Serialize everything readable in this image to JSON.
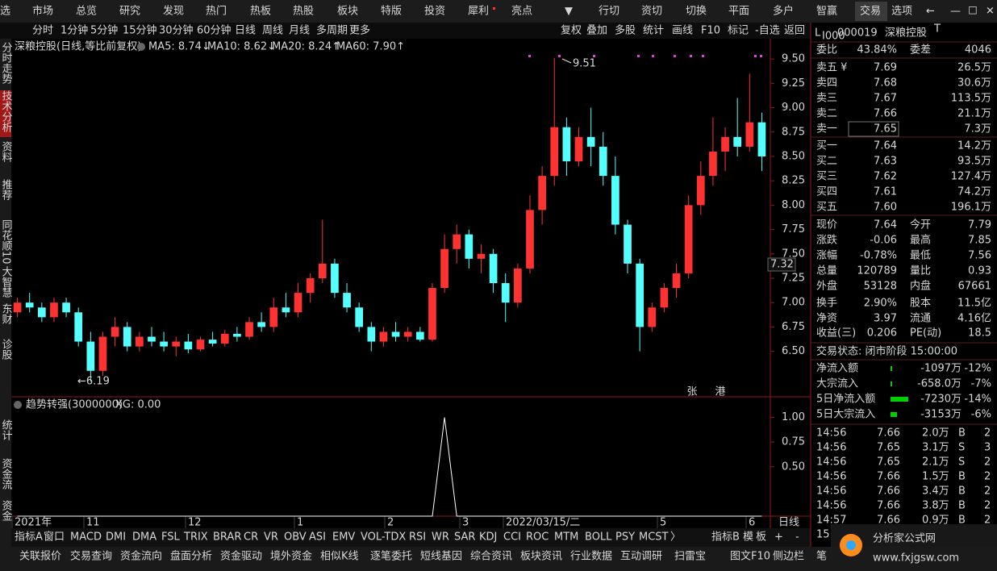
{
  "top_menu": [
    "选",
    "市场",
    "总览",
    "研究",
    "发现",
    "热门",
    "热板",
    "热股",
    "板块",
    "特版",
    "投资",
    "犀利",
    "亮点",
    "▼",
    "行切",
    "资切",
    "切换",
    "平面",
    "多户",
    "智赢",
    "交易",
    "选项",
    "←",
    "—",
    "☐",
    "✕"
  ],
  "periods": [
    "分时",
    "1分钟",
    "5分钟",
    "15分钟",
    "30分钟",
    "60分钟",
    "日线",
    "周线",
    "月线",
    "多周期",
    "更多"
  ],
  "tools": [
    "复权",
    "叠加",
    "多股",
    "统计",
    "画线",
    "F10",
    "标记",
    "-自选",
    "返回"
  ],
  "sidebar": [
    "分时走势",
    "技术分析",
    "资料",
    "推荐",
    "同花顺10",
    "大智慧",
    "东财",
    "诊股",
    "统计",
    "资金流",
    "资金"
  ],
  "chart_data": {
    "type": "candlestick",
    "title": "深粮控股(日线,等比前复权)",
    "ma_labels": [
      "MA5: 8.74↓",
      "MA10: 8.62↓",
      "MA20: 8.24↑",
      "MA60: 7.90↑"
    ],
    "ma_colors": [
      "#ffffff",
      "#ffff00",
      "#ff40ff",
      "#00e000"
    ],
    "up_color": "#ff3232",
    "down_color": "#54ffff",
    "ylim": [
      6.05,
      9.65
    ],
    "yticks": [
      {
        "value": 9.5,
        "label": "9.50"
      },
      {
        "value": 9.25,
        "label": "9.25"
      },
      {
        "value": 9.0,
        "label": "9.00"
      },
      {
        "value": 8.75,
        "label": "8.75"
      },
      {
        "value": 8.5,
        "label": "8.50"
      },
      {
        "value": 8.25,
        "label": "8.25"
      },
      {
        "value": 8.0,
        "label": "8.00"
      },
      {
        "value": 7.75,
        "label": "7.75"
      },
      {
        "value": 7.5,
        "label": "7.50"
      },
      {
        "value": 7.25,
        "label": "7.25"
      },
      {
        "value": 7.0,
        "label": "7.00"
      },
      {
        "value": 6.75,
        "label": "6.75"
      },
      {
        "value": 6.5,
        "label": "6.50"
      }
    ],
    "ohlc": [
      [
        6.9,
        7.05,
        6.85,
        7.0
      ],
      [
        7.0,
        7.1,
        6.9,
        6.95
      ],
      [
        6.95,
        7.0,
        6.8,
        6.85
      ],
      [
        6.85,
        7.05,
        6.8,
        7.0
      ],
      [
        7.0,
        7.05,
        6.85,
        6.9
      ],
      [
        6.9,
        6.95,
        6.55,
        6.6
      ],
      [
        6.6,
        6.7,
        6.19,
        6.3
      ],
      [
        6.3,
        6.7,
        6.25,
        6.65
      ],
      [
        6.65,
        6.85,
        6.55,
        6.75
      ],
      [
        6.75,
        6.8,
        6.5,
        6.55
      ],
      [
        6.55,
        6.7,
        6.5,
        6.65
      ],
      [
        6.65,
        6.75,
        6.55,
        6.6
      ],
      [
        6.6,
        6.7,
        6.5,
        6.55
      ],
      [
        6.55,
        6.65,
        6.45,
        6.6
      ],
      [
        6.6,
        6.68,
        6.48,
        6.52
      ],
      [
        6.52,
        6.65,
        6.5,
        6.62
      ],
      [
        6.62,
        6.7,
        6.55,
        6.58
      ],
      [
        6.58,
        6.72,
        6.55,
        6.68
      ],
      [
        6.68,
        6.75,
        6.6,
        6.65
      ],
      [
        6.65,
        6.85,
        6.62,
        6.8
      ],
      [
        6.8,
        6.9,
        6.7,
        6.75
      ],
      [
        6.75,
        7.05,
        6.7,
        6.95
      ],
      [
        6.95,
        7.1,
        6.85,
        6.9
      ],
      [
        6.9,
        7.2,
        6.85,
        7.1
      ],
      [
        7.1,
        7.3,
        7.0,
        7.25
      ],
      [
        7.25,
        7.85,
        7.2,
        7.4
      ],
      [
        7.4,
        7.45,
        7.05,
        7.1
      ],
      [
        7.1,
        7.2,
        6.9,
        6.95
      ],
      [
        6.95,
        7.0,
        6.7,
        6.75
      ],
      [
        6.75,
        6.8,
        6.5,
        6.6
      ],
      [
        6.6,
        6.75,
        6.55,
        6.7
      ],
      [
        6.7,
        6.8,
        6.6,
        6.65
      ],
      [
        6.65,
        6.75,
        6.6,
        6.7
      ],
      [
        6.7,
        6.75,
        6.6,
        6.62
      ],
      [
        6.62,
        7.2,
        6.6,
        7.15
      ],
      [
        7.15,
        7.7,
        7.1,
        7.55
      ],
      [
        7.55,
        7.8,
        7.4,
        7.7
      ],
      [
        7.7,
        7.75,
        7.35,
        7.45
      ],
      [
        7.45,
        7.6,
        7.3,
        7.5
      ],
      [
        7.5,
        7.55,
        7.1,
        7.2
      ],
      [
        7.2,
        7.3,
        6.8,
        7.0
      ],
      [
        7.0,
        7.4,
        6.95,
        7.35
      ],
      [
        7.35,
        8.1,
        7.3,
        7.95
      ],
      [
        7.95,
        8.4,
        7.8,
        8.3
      ],
      [
        8.3,
        9.51,
        8.2,
        8.8
      ],
      [
        8.8,
        8.9,
        8.3,
        8.45
      ],
      [
        8.45,
        8.8,
        8.4,
        8.7
      ],
      [
        8.7,
        9.0,
        8.4,
        8.6
      ],
      [
        8.6,
        8.75,
        8.2,
        8.3
      ],
      [
        8.3,
        8.5,
        7.7,
        7.8
      ],
      [
        7.8,
        7.85,
        7.3,
        7.4
      ],
      [
        7.4,
        7.45,
        6.5,
        6.75
      ],
      [
        6.75,
        7.0,
        6.7,
        6.95
      ],
      [
        6.95,
        7.2,
        6.9,
        7.15
      ],
      [
        7.15,
        7.4,
        7.05,
        7.3
      ],
      [
        7.3,
        8.1,
        7.25,
        8.0
      ],
      [
        8.0,
        8.45,
        7.9,
        8.3
      ],
      [
        8.3,
        8.9,
        8.2,
        8.55
      ],
      [
        8.55,
        8.8,
        8.35,
        8.7
      ],
      [
        8.7,
        9.1,
        8.5,
        8.6
      ],
      [
        8.6,
        9.35,
        8.55,
        8.85
      ],
      [
        8.85,
        8.95,
        8.35,
        8.5
      ]
    ],
    "annotations": {
      "high": "9.51",
      "low": "←6.19",
      "marker": "7.32",
      "marks": [
        "张",
        "港"
      ]
    },
    "x_labels": [
      "2021年",
      "11",
      "12",
      "1",
      "2",
      "3",
      "2022/03/15/二",
      "5",
      "6"
    ],
    "period_label": "日线"
  },
  "indicator": {
    "title": "趋势转强(3000000)",
    "xg": "XG: 0.00",
    "ylim": [
      0,
      1.2
    ],
    "yticks": [
      {
        "value": 1.0,
        "label": "1.00"
      },
      {
        "value": 0.75,
        "label": "0.75"
      },
      {
        "value": 0.5,
        "label": "0.50"
      }
    ],
    "values": [
      0,
      0,
      0,
      0,
      0,
      0,
      0,
      0,
      0,
      0,
      0,
      0,
      0,
      0,
      0,
      0,
      0,
      0,
      0,
      0,
      0,
      0,
      0,
      0,
      0,
      0,
      0,
      0,
      0,
      0,
      0,
      0,
      0,
      0,
      0,
      1,
      0,
      0,
      0,
      0,
      0,
      0,
      0,
      0,
      0,
      0,
      0,
      0,
      0,
      0,
      0,
      0,
      0,
      0,
      0,
      0,
      0,
      0,
      0,
      0,
      0,
      0
    ]
  },
  "indicator_tabs": [
    "指标A",
    "窗口",
    "MACD",
    "DMI",
    "DMA",
    "FSL",
    "TRIX",
    "BRAR",
    "CR",
    "VR",
    "OBV",
    "ASI",
    "EMV",
    "VOL-TDX",
    "RSI",
    "WR",
    "SAR",
    "KDJ",
    "CCI",
    "ROC",
    "MTM",
    "BOLL",
    "PSY",
    "MCST",
    "〉",
    "指标B",
    "模",
    "板",
    "+",
    "-"
  ],
  "bottom_bar": [
    "关联报价",
    "交易查询",
    "资金流向",
    "盘面分析",
    "资金驱动",
    "境外资金",
    "相似K线",
    "逐笔委托",
    "短线基因",
    "综合资讯",
    "板块资讯",
    "行业数据",
    "互动调研",
    "扫雷宝",
    "图文F10",
    "侧边栏",
    "笔"
  ],
  "watermark": {
    "name": "分析家公式网",
    "url": "www.fxjgsw.com"
  },
  "quote": {
    "prefix": "L",
    "prefix_sub": "I000",
    "code": "000019",
    "name": "深粮控股",
    "name_sup": "T",
    "weibi": [
      "委比",
      "43.84%",
      "委差",
      "4046"
    ],
    "sells": [
      [
        "卖五 ¥",
        "7.69",
        "26.5万"
      ],
      [
        "卖四",
        "7.68",
        "30.6万"
      ],
      [
        "卖三",
        "7.67",
        "113.5万"
      ],
      [
        "卖二",
        "7.66",
        "21.1万"
      ],
      [
        "卖一",
        "7.65",
        "7.3万"
      ]
    ],
    "buys": [
      [
        "买一",
        "7.64",
        "14.2万"
      ],
      [
        "买二",
        "7.63",
        "93.5万"
      ],
      [
        "买三",
        "7.62",
        "127.4万"
      ],
      [
        "买四",
        "7.61",
        "74.2万"
      ],
      [
        "买五",
        "7.60",
        "196.1万"
      ]
    ],
    "stats": [
      [
        "现价",
        "7.64",
        "今开",
        "7.79"
      ],
      [
        "涨跌",
        "-0.06",
        "最高",
        "7.85"
      ],
      [
        "涨幅",
        "-0.78%",
        "最低",
        "7.56"
      ],
      [
        "总量",
        "120789",
        "量比",
        "0.93"
      ],
      [
        "外盘",
        "53128",
        "内盘",
        "67661"
      ],
      [
        "换手",
        "2.90%",
        "股本",
        "11.5亿"
      ],
      [
        "净资",
        "3.97",
        "流通",
        "4.16亿"
      ],
      [
        "收益(三)",
        "0.206",
        "PE(动)",
        "18.5"
      ]
    ],
    "status": "交易状态: 闭市阶段 15:00:00",
    "flows": [
      [
        "净流入额",
        "-1097万",
        "-12%"
      ],
      [
        "大宗流入",
        "-658.0万",
        "-7%"
      ],
      [
        "5日净流入额",
        "-7230万",
        "-14%"
      ],
      [
        "5日大宗流入",
        "-3153万",
        "-6%"
      ]
    ],
    "trades": [
      [
        "14:56",
        "7.66",
        "2.0万",
        "B",
        "2"
      ],
      [
        "14:56",
        "7.65",
        "3.1万",
        "S",
        "3"
      ],
      [
        "14:56",
        "7.65",
        "2.1万",
        "S",
        "2"
      ],
      [
        "14:56",
        "7.66",
        "1.5万",
        "B",
        "2"
      ],
      [
        "14:56",
        "7.66",
        "3.4万",
        "B",
        "2"
      ],
      [
        "14:56",
        "7.66",
        "3.8万",
        "B",
        "2"
      ],
      [
        "14:57",
        "7.66",
        "0.9万",
        "B",
        "2"
      ],
      [
        "15"
      ]
    ]
  }
}
